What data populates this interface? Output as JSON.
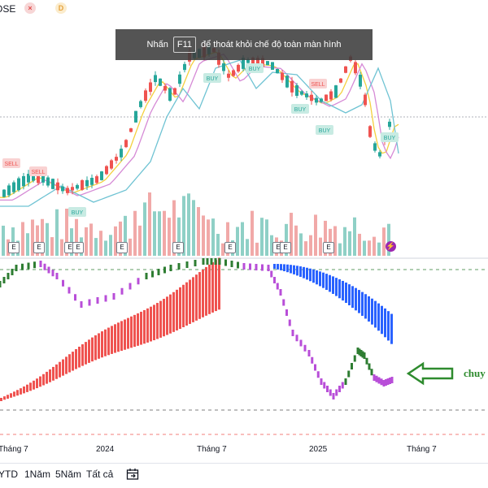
{
  "header": {
    "ticker_fragment": "OSE",
    "badge_red_icon": "close-x-icon",
    "badge_gold": "D"
  },
  "toast": {
    "prefix": "Nhấn",
    "key": "F11",
    "suffix": "để thoát khỏi chế độ toàn màn hình"
  },
  "signals": {
    "buy": "BUY",
    "sell": "SELL"
  },
  "events": {
    "earnings_label": "E",
    "dividend_icon": "lightning-icon"
  },
  "x_axis": {
    "labels": [
      "Tháng 7",
      "2024",
      "Tháng 7",
      "2025",
      "Tháng 7"
    ]
  },
  "annotation": {
    "text": "chuy",
    "arrow_color": "#2e8b2e"
  },
  "bottom": {
    "ranges": [
      "YTD",
      "1Năm",
      "5Năm",
      "Tất cả"
    ],
    "compare_icon": "calendar-range-icon"
  },
  "colors": {
    "up": "#26a69a",
    "down": "#ef5350",
    "indicator_up": "#2e7d32",
    "indicator_down_red": "#ef5350",
    "indicator_blue": "#2962ff",
    "indicator_purple": "#b84ed8",
    "ma_yellow": "#f4d03f",
    "ma_pink": "#d68ad6",
    "ma_teal": "#6fc3d3"
  }
}
